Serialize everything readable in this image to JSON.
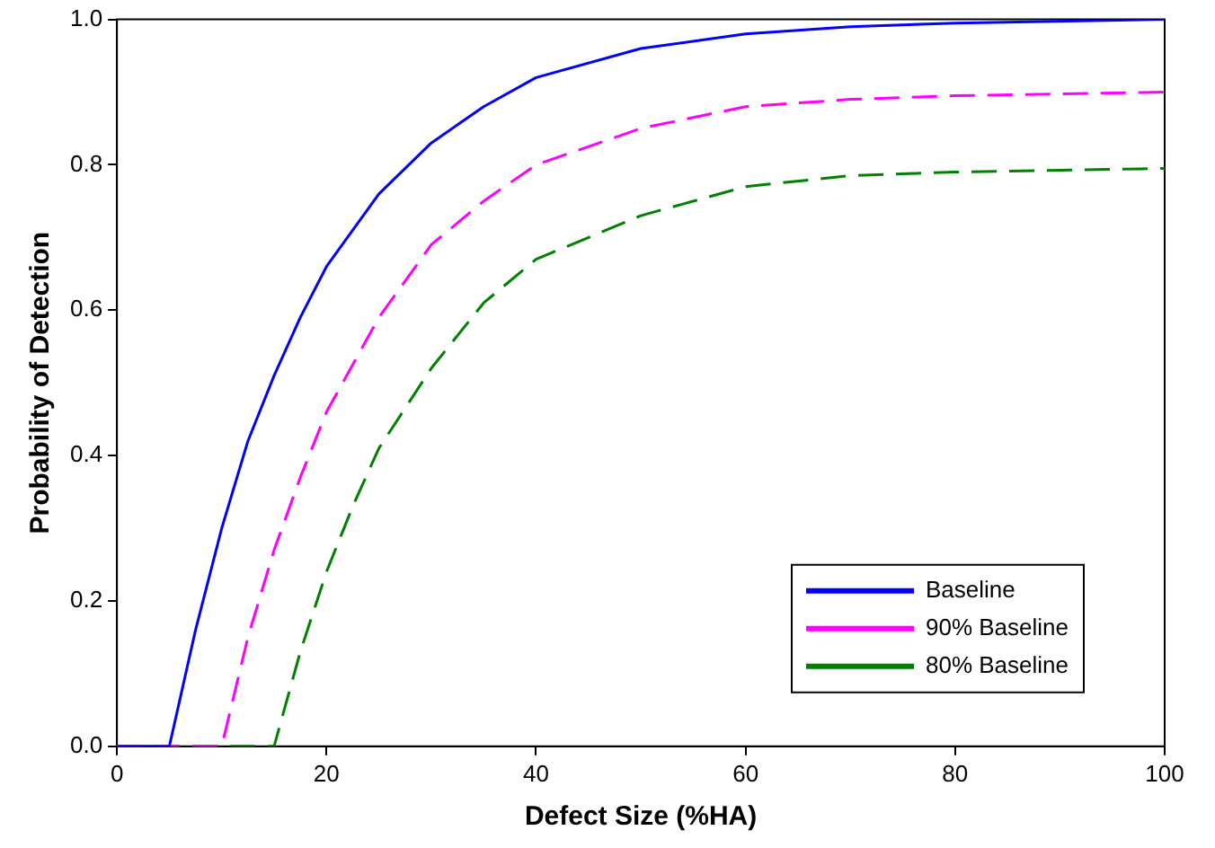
{
  "chart_data": {
    "type": "line",
    "xlabel": "Defect Size (%HA)",
    "ylabel": "Probability of Detection",
    "xlim": [
      0,
      100
    ],
    "ylim": [
      0,
      1
    ],
    "xticks": [
      0,
      20,
      40,
      60,
      80,
      100
    ],
    "yticks": [
      {
        "value": 0,
        "label": "0.0"
      },
      {
        "value": 0.2,
        "label": "0.2"
      },
      {
        "value": 0.4,
        "label": "0.4"
      },
      {
        "value": 0.6,
        "label": "0.6"
      },
      {
        "value": 0.8,
        "label": "0.8"
      },
      {
        "value": 1,
        "label": "1.0"
      }
    ],
    "grid": false,
    "legend": "bottom right",
    "marker": "none",
    "series": [
      {
        "name": "Baseline",
        "color": "#0000ff",
        "line_style": "solid",
        "x": [
          0,
          5,
          7.5,
          10,
          12.5,
          15,
          17.5,
          20,
          25,
          30,
          35,
          40,
          50,
          60,
          70,
          80,
          100
        ],
        "values": [
          0,
          0,
          0.16,
          0.3,
          0.42,
          0.51,
          0.59,
          0.66,
          0.76,
          0.83,
          0.88,
          0.92,
          0.96,
          0.98,
          0.99,
          0.995,
          1.0
        ]
      },
      {
        "name": "90% Baseline",
        "color": "#ff00ff",
        "line_style": "dashed",
        "x": [
          0,
          10,
          12.5,
          15,
          17.5,
          20,
          25,
          30,
          35,
          40,
          50,
          60,
          70,
          80,
          100
        ],
        "values": [
          0,
          0,
          0.15,
          0.27,
          0.37,
          0.46,
          0.59,
          0.69,
          0.75,
          0.8,
          0.85,
          0.88,
          0.89,
          0.895,
          0.9
        ]
      },
      {
        "name": "80% Baseline",
        "color": "#008000",
        "line_style": "dashed",
        "x": [
          0,
          15,
          17.5,
          20,
          22.5,
          25,
          30,
          35,
          40,
          50,
          60,
          70,
          80,
          100
        ],
        "values": [
          0,
          0,
          0.13,
          0.24,
          0.33,
          0.41,
          0.52,
          0.61,
          0.67,
          0.73,
          0.77,
          0.785,
          0.79,
          0.795
        ]
      }
    ]
  }
}
